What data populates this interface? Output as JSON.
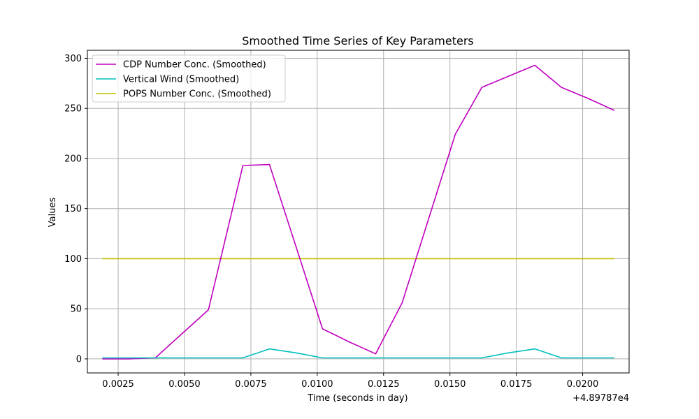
{
  "chart_data": {
    "type": "line",
    "title": "Smoothed Time Series of Key Parameters",
    "xlabel": "Time (seconds in day)",
    "ylabel": "Values",
    "x_offset_label": "+4.89787e4",
    "x_tick_labels": [
      "0.0025",
      "0.0050",
      "0.0075",
      "0.0100",
      "0.0125",
      "0.0150",
      "0.0175",
      "0.0200"
    ],
    "x_ticks": [
      0.0025,
      0.005,
      0.0075,
      0.01,
      0.0125,
      0.015,
      0.0175,
      0.02
    ],
    "y_tick_labels": [
      "0",
      "50",
      "100",
      "150",
      "200",
      "250",
      "300"
    ],
    "y_ticks": [
      0,
      50,
      100,
      150,
      200,
      250,
      300
    ],
    "xlim": [
      0.00134,
      0.02175
    ],
    "ylim": [
      -14,
      308
    ],
    "grid": true,
    "legend_position": "top-left",
    "x": [
      0.0019,
      0.0029,
      0.0039,
      0.0049,
      0.0059,
      0.0072,
      0.0082,
      0.0092,
      0.0102,
      0.0112,
      0.0122,
      0.0132,
      0.0142,
      0.0152,
      0.0162,
      0.0172,
      0.0182,
      0.0192,
      0.0202,
      0.0212
    ],
    "series": [
      {
        "name": "CDP Number Conc. (Smoothed)",
        "color": "#bf00bf",
        "values": [
          0,
          0,
          1,
          25,
          49,
          193,
          194,
          112,
          30,
          17,
          5,
          56,
          140,
          224,
          271,
          282,
          293,
          271,
          260,
          248
        ]
      },
      {
        "name": "Vertical Wind (Smoothed)",
        "color": "#00bfbf",
        "values": [
          1,
          1,
          1,
          1,
          1,
          1,
          10,
          6,
          1,
          1,
          1,
          1,
          1,
          1,
          1,
          6,
          10,
          1,
          1,
          1
        ]
      },
      {
        "name": "POPS Number Conc. (Smoothed)",
        "color": "#bfbf00",
        "values": [
          100,
          100,
          100,
          100,
          100,
          100,
          100,
          100,
          100,
          100,
          100,
          100,
          100,
          100,
          100,
          100,
          100,
          100,
          100,
          100
        ]
      }
    ]
  }
}
